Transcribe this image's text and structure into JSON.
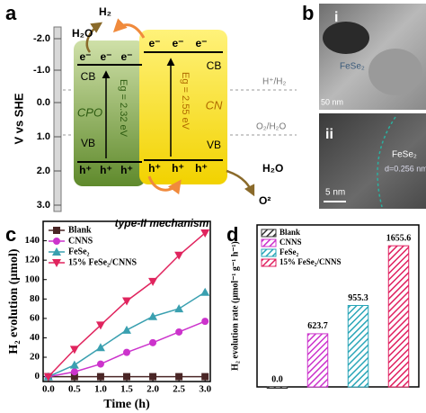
{
  "panel_labels": [
    "a",
    "b",
    "c",
    "d"
  ],
  "diagram": {
    "axis_label": "V vs SHE",
    "ticks": [
      "-2.0",
      "-1.0",
      "0.0",
      "1.0",
      "2.0",
      "3.0"
    ],
    "left": {
      "name": "CPO",
      "cb": "CB",
      "vb": "VB",
      "gap": "Eg = 2.32 eV"
    },
    "right": {
      "name": "CN",
      "cb": "CB",
      "vb": "VB",
      "gap": "Eg = 2.55 eV"
    },
    "electron": "e⁻",
    "hole": "h⁺",
    "levels": [
      "H⁺/H₂",
      "O₂/H₂O"
    ],
    "species": [
      "H₂O",
      "H₂",
      "H₂O",
      "O²"
    ],
    "caption": "type-II mechanism"
  },
  "images": {
    "labels": [
      "i",
      "ii"
    ],
    "annotations": [
      "FeSe₂",
      "50 nm",
      "FeSe₂",
      "d=0.256 nm",
      "5 nm"
    ]
  },
  "chart_data": [
    {
      "type": "line",
      "xlabel": "Time (h)",
      "ylabel": "H₂ evolution (μmol)",
      "x": [
        0,
        0.5,
        1,
        1.5,
        2,
        2.5,
        3
      ],
      "xlim": [
        -0.1,
        3.1
      ],
      "xticks": [
        {
          "value": 0,
          "label": "0.0"
        },
        0.5,
        {
          "value": 1,
          "label": "1.0"
        },
        1.5,
        {
          "value": 2,
          "label": "2.0"
        },
        2.5,
        {
          "value": 3,
          "label": "3.0"
        }
      ],
      "ylim": [
        -5,
        160
      ],
      "yticks": [
        0,
        20,
        40,
        60,
        80,
        100,
        120,
        140
      ],
      "legend": "upper left",
      "series": [
        {
          "name": "Blank",
          "color": "#4a2626",
          "marker": "square",
          "values": [
            0,
            0,
            0,
            0,
            0,
            0,
            0
          ]
        },
        {
          "name": "CNNS",
          "color": "#cc33cc",
          "marker": "circle",
          "values": [
            0,
            5,
            13,
            25,
            35,
            46,
            57
          ]
        },
        {
          "name": "FeSe₂",
          "color": "#3aa0b0",
          "marker": "triangle-up",
          "values": [
            0,
            12,
            30,
            48,
            62,
            70,
            87
          ]
        },
        {
          "name": "15% FeSe₂/CNNS",
          "color": "#e0245e",
          "marker": "triangle-down",
          "values": [
            0,
            28,
            53,
            78,
            98,
            125,
            148
          ]
        }
      ]
    },
    {
      "type": "bar",
      "ylabel": "H₂ evolution rate (μmol⁻¹ g⁻¹ h⁻¹)",
      "categories": [
        "Blank",
        "CNNS",
        "FeSe₂",
        "15% FeSe₂/CNNS"
      ],
      "values": [
        0,
        623.7,
        955.3,
        1655.6
      ],
      "value_labels": [
        "0.0",
        "623.7",
        "955.3",
        "1655.6"
      ],
      "colors": [
        "#333333",
        "#cc33cc",
        "#2aa6b8",
        "#e02060"
      ],
      "ylim": [
        0,
        1900
      ],
      "legend": "upper left",
      "hatch": true
    }
  ]
}
